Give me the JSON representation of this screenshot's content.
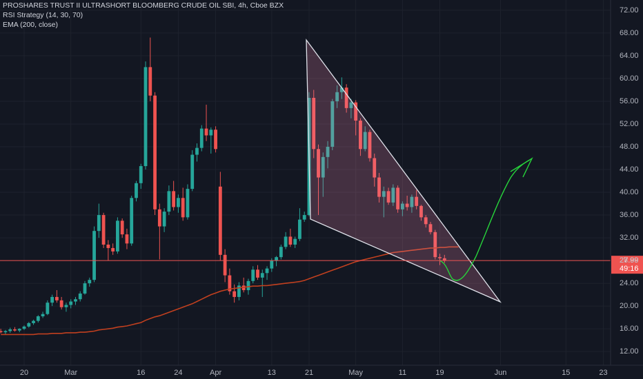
{
  "chart_data": {
    "type": "candlestick",
    "title": "PROSHARES TRUST II ULTRASHORT BLOOMBERG CRUDE OIL SBI, 4h, Cboe BZX",
    "indicators": [
      "RSI Strategy (14, 30, 70)"
    ],
    "up_color": "#26a69a",
    "down_color": "#ef5350",
    "categories": [
      null,
      null,
      null,
      null,
      null,
      "20",
      null,
      null,
      null,
      null,
      null,
      null,
      null,
      null,
      null,
      "Mar",
      null,
      null,
      null,
      null,
      null,
      null,
      null,
      null,
      null,
      null,
      null,
      null,
      null,
      null,
      "16",
      null,
      null,
      null,
      null,
      null,
      null,
      null,
      "24",
      null,
      null,
      null,
      null,
      null,
      null,
      null,
      "Apr",
      null,
      null,
      null,
      null,
      null,
      null,
      null,
      null,
      null,
      null,
      null,
      "13",
      null,
      null,
      null,
      null,
      null,
      null,
      null,
      "21",
      null,
      null,
      null,
      null,
      null,
      null,
      null,
      null,
      null,
      "May",
      null,
      null,
      null,
      null,
      null,
      null,
      null,
      null,
      null,
      "11",
      null,
      null,
      null,
      null,
      null,
      null,
      null,
      "19",
      null,
      null,
      null,
      null,
      null,
      null,
      null,
      null,
      null,
      null,
      null,
      null,
      "Jun",
      null,
      null,
      null,
      null,
      null,
      null,
      null,
      null,
      null,
      null,
      null,
      null,
      null,
      "15",
      null,
      null,
      null,
      null,
      null,
      null,
      null,
      "23",
      null
    ],
    "candles": [
      [
        15.6,
        16.0,
        15.2,
        15.4
      ],
      [
        15.4,
        15.8,
        15.0,
        15.6
      ],
      [
        15.6,
        16.2,
        15.3,
        15.9
      ],
      [
        15.9,
        16.3,
        15.5,
        15.7
      ],
      [
        15.7,
        16.1,
        15.4,
        16.0
      ],
      [
        16.0,
        16.6,
        15.8,
        16.4
      ],
      [
        16.4,
        17.2,
        16.2,
        17.0
      ],
      [
        17.0,
        17.6,
        16.7,
        17.4
      ],
      [
        17.4,
        18.4,
        17.1,
        18.2
      ],
      [
        18.2,
        19.0,
        17.9,
        18.6
      ],
      [
        18.6,
        21.0,
        18.4,
        20.6
      ],
      [
        20.6,
        22.0,
        20.0,
        21.6
      ],
      [
        21.6,
        22.8,
        20.6,
        21.0
      ],
      [
        21.0,
        21.6,
        19.4,
        19.8
      ],
      [
        19.8,
        20.6,
        19.0,
        20.2
      ],
      [
        20.2,
        21.2,
        19.6,
        20.8
      ],
      [
        20.8,
        21.6,
        20.2,
        21.2
      ],
      [
        21.2,
        22.6,
        20.8,
        22.2
      ],
      [
        22.2,
        24.4,
        22.0,
        24.0
      ],
      [
        24.0,
        25.0,
        23.4,
        24.6
      ],
      [
        24.6,
        34.0,
        24.2,
        33.2
      ],
      [
        33.2,
        38.0,
        32.0,
        36.0
      ],
      [
        36.0,
        36.4,
        30.2,
        30.8
      ],
      [
        30.8,
        31.6,
        28.0,
        30.2
      ],
      [
        30.2,
        31.0,
        29.0,
        29.6
      ],
      [
        29.6,
        35.6,
        29.2,
        35.0
      ],
      [
        35.0,
        35.4,
        32.0,
        32.6
      ],
      [
        32.6,
        33.6,
        30.0,
        31.0
      ],
      [
        31.0,
        39.4,
        30.6,
        39.0
      ],
      [
        39.0,
        42.0,
        38.4,
        41.6
      ],
      [
        41.6,
        45.0,
        40.6,
        44.6
      ],
      [
        44.6,
        63.0,
        44.0,
        62.0
      ],
      [
        62.0,
        67.2,
        56.0,
        57.0
      ],
      [
        57.0,
        57.6,
        36.0,
        37.0
      ],
      [
        37.0,
        38.0,
        28.2,
        34.0
      ],
      [
        34.0,
        37.2,
        33.0,
        36.6
      ],
      [
        36.6,
        41.2,
        36.0,
        40.2
      ],
      [
        40.2,
        42.0,
        36.8,
        37.4
      ],
      [
        37.4,
        39.6,
        36.4,
        39.0
      ],
      [
        39.0,
        40.8,
        35.0,
        35.6
      ],
      [
        35.6,
        41.4,
        35.2,
        40.6
      ],
      [
        40.6,
        47.4,
        40.2,
        46.6
      ],
      [
        46.6,
        48.6,
        45.4,
        47.8
      ],
      [
        47.8,
        51.8,
        47.2,
        51.2
      ],
      [
        51.2,
        55.4,
        49.0,
        50.0
      ],
      [
        50.0,
        51.4,
        46.8,
        51.0
      ],
      [
        51.0,
        51.6,
        47.0,
        47.6
      ],
      [
        41.0,
        43.6,
        28.0,
        29.0
      ],
      [
        29.0,
        30.0,
        24.2,
        25.4
      ],
      [
        25.4,
        26.6,
        22.0,
        22.6
      ],
      [
        22.6,
        23.8,
        20.6,
        21.6
      ],
      [
        21.6,
        24.2,
        21.0,
        23.6
      ],
      [
        23.6,
        25.0,
        22.4,
        22.8
      ],
      [
        22.8,
        24.8,
        22.0,
        24.4
      ],
      [
        24.4,
        27.0,
        24.0,
        26.4
      ],
      [
        26.4,
        27.2,
        24.6,
        25.0
      ],
      [
        25.0,
        26.4,
        21.6,
        25.8
      ],
      [
        25.8,
        27.0,
        24.6,
        26.6
      ],
      [
        26.6,
        28.4,
        26.0,
        28.0
      ],
      [
        28.0,
        28.8,
        27.0,
        28.6
      ],
      [
        28.6,
        30.8,
        28.2,
        30.4
      ],
      [
        30.4,
        33.0,
        30.0,
        32.2
      ],
      [
        32.2,
        33.6,
        30.4,
        30.8
      ],
      [
        30.8,
        32.2,
        30.2,
        31.8
      ],
      [
        31.8,
        37.2,
        31.4,
        35.2
      ],
      [
        35.2,
        36.6,
        34.8,
        36.0
      ],
      [
        36.0,
        57.6,
        35.8,
        56.6
      ],
      [
        56.6,
        58.0,
        46.0,
        47.6
      ],
      [
        47.6,
        48.4,
        36.0,
        42.6
      ],
      [
        42.6,
        47.0,
        39.2,
        46.2
      ],
      [
        46.2,
        49.0,
        44.2,
        48.0
      ],
      [
        48.0,
        56.4,
        47.4,
        56.0
      ],
      [
        56.0,
        58.8,
        54.8,
        57.6
      ],
      [
        57.6,
        60.2,
        56.4,
        58.4
      ],
      [
        58.4,
        59.0,
        54.0,
        54.8
      ],
      [
        54.8,
        56.4,
        53.0,
        55.8
      ],
      [
        55.8,
        56.2,
        50.0,
        52.6
      ],
      [
        52.6,
        53.0,
        46.4,
        47.6
      ],
      [
        47.6,
        51.6,
        47.2,
        50.6
      ],
      [
        50.6,
        51.0,
        45.4,
        46.0
      ],
      [
        46.0,
        46.8,
        41.0,
        42.6
      ],
      [
        42.6,
        43.4,
        38.2,
        39.2
      ],
      [
        39.2,
        41.0,
        35.6,
        40.2
      ],
      [
        40.2,
        40.8,
        37.8,
        38.2
      ],
      [
        38.2,
        41.4,
        37.6,
        40.8
      ],
      [
        40.8,
        41.2,
        36.4,
        37.0
      ],
      [
        37.0,
        38.4,
        35.8,
        38.0
      ],
      [
        38.0,
        39.4,
        36.8,
        37.4
      ],
      [
        37.4,
        39.6,
        36.4,
        39.2
      ],
      [
        39.2,
        40.4,
        37.0,
        37.6
      ],
      [
        37.6,
        37.8,
        35.0,
        35.6
      ],
      [
        35.6,
        36.0,
        33.8,
        34.4
      ],
      [
        34.4,
        34.8,
        32.6,
        33.0
      ],
      [
        33.0,
        33.4,
        28.2,
        28.6
      ],
      [
        28.6,
        29.2,
        27.2,
        28.4
      ],
      [
        28.4,
        29.0,
        27.6,
        27.99
      ],
      null,
      null,
      null,
      null,
      null,
      null,
      null,
      null,
      null,
      null,
      null,
      null,
      null,
      null,
      null,
      null,
      null,
      null,
      null,
      null,
      null,
      null,
      null,
      null,
      null,
      null,
      null,
      null,
      null,
      null,
      null,
      null,
      null,
      null,
      null
    ],
    "series": [
      {
        "name": "EMA (200, close)",
        "color": "#c2401f",
        "values": [
          15.0,
          15.0,
          15.0,
          15.0,
          15.0,
          15.0,
          15.0,
          15.0,
          15.1,
          15.1,
          15.1,
          15.2,
          15.2,
          15.2,
          15.3,
          15.3,
          15.3,
          15.4,
          15.4,
          15.5,
          15.6,
          15.8,
          15.9,
          16.0,
          16.1,
          16.3,
          16.4,
          16.5,
          16.7,
          16.9,
          17.1,
          17.5,
          17.8,
          18.1,
          18.3,
          18.6,
          18.9,
          19.2,
          19.5,
          19.8,
          20.1,
          20.4,
          20.8,
          21.2,
          21.6,
          22.0,
          22.3,
          22.6,
          22.8,
          23.0,
          23.1,
          23.2,
          23.3,
          23.4,
          23.5,
          23.5,
          23.6,
          23.6,
          23.7,
          23.8,
          23.9,
          24.0,
          24.1,
          24.2,
          24.3,
          24.5,
          24.8,
          25.1,
          25.4,
          25.7,
          26.0,
          26.3,
          26.6,
          26.9,
          27.2,
          27.5,
          27.8,
          28.0,
          28.2,
          28.4,
          28.6,
          28.8,
          29.0,
          29.2,
          29.4,
          29.5,
          29.6,
          29.7,
          29.8,
          29.9,
          30.0,
          30.1,
          30.2,
          30.2,
          30.3,
          30.3,
          30.4,
          30.4,
          30.4,
          null,
          null,
          null,
          null,
          null,
          null,
          null,
          null,
          null,
          null,
          null,
          null,
          null,
          null,
          null,
          null,
          null,
          null,
          null,
          null,
          null,
          null,
          null,
          null,
          null,
          null,
          null,
          null,
          null,
          null,
          null,
          null
        ]
      }
    ],
    "last_price": 27.99,
    "countdown": "49:16",
    "ylim": [
      9.6,
      73.8
    ],
    "yticks": [
      {
        "value": 12,
        "label": "12.00"
      },
      {
        "value": 16,
        "label": "16.00"
      },
      {
        "value": 20,
        "label": "20.00"
      },
      {
        "value": 24,
        "label": "24.00"
      },
      {
        "value": 28,
        "label": "28.00"
      },
      {
        "value": 32,
        "label": "32.00"
      },
      {
        "value": 36,
        "label": "36.00"
      },
      {
        "value": 40,
        "label": "40.00"
      },
      {
        "value": 44,
        "label": "44.00"
      },
      {
        "value": 48,
        "label": "48.00"
      },
      {
        "value": 52,
        "label": "52.00"
      },
      {
        "value": 56,
        "label": "56.00"
      },
      {
        "value": 60,
        "label": "60.00"
      },
      {
        "value": 64,
        "label": "64.00"
      },
      {
        "value": 68,
        "label": "68.00"
      },
      {
        "value": 72,
        "label": "72.00"
      }
    ],
    "grid": true
  }
}
